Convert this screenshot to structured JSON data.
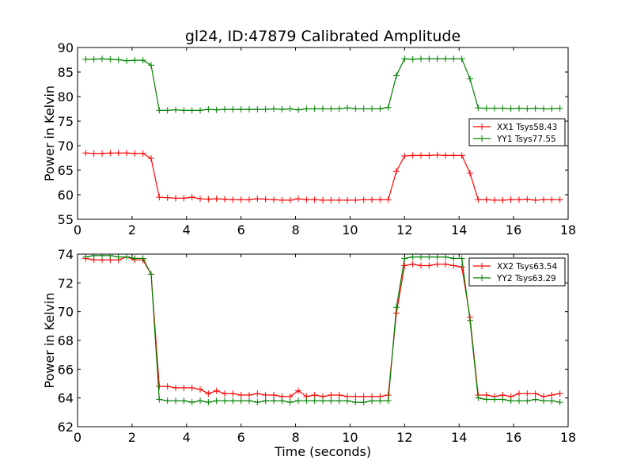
{
  "chart_data": [
    {
      "type": "line",
      "title": "gl24, ID:47879 Calibrated Amplitude",
      "xlabel": "",
      "ylabel": "Power in Kelvin",
      "xlim": [
        0,
        18
      ],
      "ylim": [
        55,
        90
      ],
      "xticks": [
        0,
        2,
        4,
        6,
        8,
        10,
        12,
        14,
        16,
        18
      ],
      "yticks": [
        55,
        60,
        65,
        70,
        75,
        80,
        85,
        90
      ],
      "legend_position": "right",
      "grid": false,
      "marker": "plus",
      "x": [
        0.3,
        0.6,
        0.9,
        1.2,
        1.5,
        1.8,
        2.1,
        2.4,
        2.7,
        3.0,
        3.3,
        3.6,
        3.9,
        4.2,
        4.5,
        4.8,
        5.1,
        5.4,
        5.7,
        6.0,
        6.3,
        6.6,
        6.9,
        7.2,
        7.5,
        7.8,
        8.1,
        8.4,
        8.7,
        9.0,
        9.3,
        9.6,
        9.9,
        10.2,
        10.5,
        10.8,
        11.1,
        11.4,
        11.7,
        12.0,
        12.3,
        12.6,
        12.9,
        13.2,
        13.5,
        13.8,
        14.1,
        14.4,
        14.7,
        15.0,
        15.3,
        15.6,
        15.9,
        16.2,
        16.5,
        16.8,
        17.1,
        17.4,
        17.7
      ],
      "series": [
        {
          "name": "XX1 Tsys58.43",
          "color": "#ff0000",
          "values": [
            68.5,
            68.4,
            68.4,
            68.5,
            68.5,
            68.5,
            68.4,
            68.4,
            67.4,
            59.5,
            59.4,
            59.3,
            59.3,
            59.5,
            59.2,
            59.1,
            59.2,
            59.1,
            59.0,
            59.0,
            59.0,
            59.2,
            59.1,
            59.0,
            58.9,
            58.9,
            59.2,
            59.0,
            59.0,
            58.9,
            58.9,
            58.9,
            58.9,
            58.9,
            59.0,
            59.0,
            59.0,
            59.0,
            64.8,
            67.9,
            68.0,
            68.0,
            68.0,
            68.1,
            68.0,
            68.0,
            68.0,
            64.4,
            59.0,
            59.0,
            58.9,
            58.9,
            59.0,
            59.0,
            59.1,
            58.9,
            59.0,
            59.0,
            59.0
          ]
        },
        {
          "name": "YY1 Tsys77.55",
          "color": "#008000",
          "values": [
            87.6,
            87.6,
            87.7,
            87.6,
            87.5,
            87.3,
            87.4,
            87.4,
            86.4,
            77.2,
            77.2,
            77.3,
            77.2,
            77.2,
            77.2,
            77.4,
            77.3,
            77.4,
            77.4,
            77.4,
            77.4,
            77.4,
            77.4,
            77.5,
            77.4,
            77.5,
            77.3,
            77.5,
            77.5,
            77.5,
            77.5,
            77.5,
            77.7,
            77.5,
            77.5,
            77.5,
            77.5,
            77.8,
            84.3,
            87.7,
            87.6,
            87.7,
            87.7,
            87.7,
            87.7,
            87.7,
            87.7,
            83.6,
            77.7,
            77.6,
            77.6,
            77.6,
            77.5,
            77.6,
            77.5,
            77.6,
            77.5,
            77.5,
            77.6
          ]
        }
      ]
    },
    {
      "type": "line",
      "title": "",
      "xlabel": "Time (seconds)",
      "ylabel": "Power in Kelvin",
      "xlim": [
        0,
        18
      ],
      "ylim": [
        62,
        74
      ],
      "xticks": [
        0,
        2,
        4,
        6,
        8,
        10,
        12,
        14,
        16,
        18
      ],
      "yticks": [
        62,
        64,
        66,
        68,
        70,
        72,
        74
      ],
      "legend_position": "top-right",
      "grid": false,
      "marker": "plus",
      "x": [
        0.3,
        0.6,
        0.9,
        1.2,
        1.5,
        1.8,
        2.1,
        2.4,
        2.7,
        3.0,
        3.3,
        3.6,
        3.9,
        4.2,
        4.5,
        4.8,
        5.1,
        5.4,
        5.7,
        6.0,
        6.3,
        6.6,
        6.9,
        7.2,
        7.5,
        7.8,
        8.1,
        8.4,
        8.7,
        9.0,
        9.3,
        9.6,
        9.9,
        10.2,
        10.5,
        10.8,
        11.1,
        11.4,
        11.7,
        12.0,
        12.3,
        12.6,
        12.9,
        13.2,
        13.5,
        13.8,
        14.1,
        14.4,
        14.7,
        15.0,
        15.3,
        15.6,
        15.9,
        16.2,
        16.5,
        16.8,
        17.1,
        17.4,
        17.7
      ],
      "series": [
        {
          "name": "XX2 Tsys63.54",
          "color": "#ff0000",
          "values": [
            73.7,
            73.6,
            73.6,
            73.6,
            73.6,
            73.8,
            73.6,
            73.6,
            72.6,
            64.8,
            64.8,
            64.7,
            64.7,
            64.7,
            64.6,
            64.3,
            64.5,
            64.3,
            64.3,
            64.2,
            64.2,
            64.3,
            64.2,
            64.2,
            64.1,
            64.1,
            64.5,
            64.1,
            64.2,
            64.1,
            64.2,
            64.2,
            64.1,
            64.1,
            64.1,
            64.1,
            64.1,
            64.2,
            69.9,
            73.2,
            73.3,
            73.2,
            73.2,
            73.3,
            73.3,
            73.2,
            73.1,
            69.6,
            64.2,
            64.2,
            64.1,
            64.2,
            64.1,
            64.3,
            64.3,
            64.3,
            64.1,
            64.2,
            64.3
          ]
        },
        {
          "name": "YY2 Tsys63.29",
          "color": "#008000",
          "values": [
            73.8,
            73.9,
            73.9,
            73.9,
            73.8,
            73.8,
            73.7,
            73.7,
            72.6,
            63.9,
            63.8,
            63.8,
            63.8,
            63.7,
            63.8,
            63.7,
            63.8,
            63.8,
            63.8,
            63.8,
            63.8,
            63.7,
            63.8,
            63.8,
            63.8,
            63.7,
            63.8,
            63.8,
            63.8,
            63.8,
            63.8,
            63.8,
            63.8,
            63.7,
            63.7,
            63.8,
            63.8,
            63.8,
            70.3,
            73.7,
            73.8,
            73.8,
            73.8,
            73.8,
            73.8,
            73.7,
            73.7,
            69.4,
            64.0,
            63.9,
            63.9,
            63.9,
            63.8,
            63.8,
            63.8,
            63.9,
            63.8,
            63.8,
            63.7
          ]
        }
      ]
    }
  ]
}
